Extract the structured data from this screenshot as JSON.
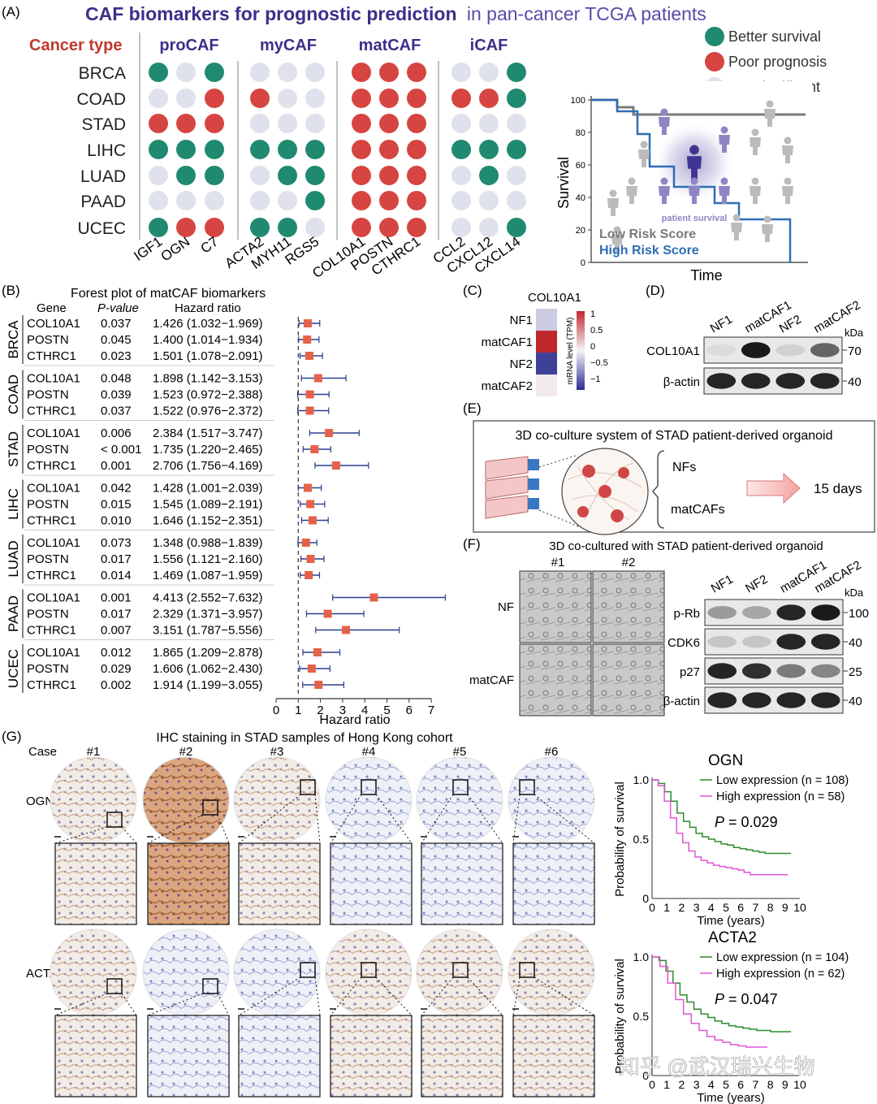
{
  "panelA": {
    "letter": "(A)",
    "title_bold": "CAF biomarkers for prognostic prediction",
    "title_rest": "in pan-cancer TCGA patients",
    "cancer_type_label": "Cancer type",
    "groups": [
      "proCAF",
      "myCAF",
      "matCAF",
      "iCAF"
    ],
    "cancers": [
      "BRCA",
      "COAD",
      "STAD",
      "LIHC",
      "LUAD",
      "PAAD",
      "UCEC"
    ],
    "genes": [
      "IGF1",
      "OGN",
      "C7",
      "ACTA2",
      "MYH11",
      "RGS5",
      "COL10A1",
      "POSTN",
      "CTHRC1",
      "CCL2",
      "CXCL12",
      "CXCL14"
    ],
    "grid": [
      [
        "G",
        "N",
        "G",
        "N",
        "N",
        "N",
        "R",
        "R",
        "R",
        "N",
        "N",
        "G"
      ],
      [
        "N",
        "N",
        "R",
        "R",
        "N",
        "N",
        "R",
        "R",
        "R",
        "R",
        "R",
        "G"
      ],
      [
        "R",
        "R",
        "R",
        "N",
        "N",
        "N",
        "R",
        "R",
        "R",
        "N",
        "N",
        "N"
      ],
      [
        "G",
        "G",
        "G",
        "G",
        "G",
        "G",
        "R",
        "R",
        "R",
        "G",
        "G",
        "G"
      ],
      [
        "N",
        "G",
        "G",
        "N",
        "G",
        "G",
        "R",
        "R",
        "R",
        "N",
        "G",
        "N"
      ],
      [
        "N",
        "N",
        "N",
        "N",
        "N",
        "G",
        "R",
        "R",
        "R",
        "N",
        "N",
        "N"
      ],
      [
        "G",
        "R",
        "R",
        "G",
        "G",
        "N",
        "R",
        "R",
        "R",
        "N",
        "N",
        "G"
      ]
    ],
    "legend": [
      {
        "label": "Better survival",
        "color": "#1f8a70"
      },
      {
        "label": "Poor prognosis",
        "color": "#d64541"
      },
      {
        "label": "Not significant",
        "color": "#dfe1ec"
      }
    ],
    "km_schematic": {
      "ylabel": "Survival",
      "xlabel": "Time",
      "yticks": [
        "0",
        "20",
        "40",
        "60",
        "80",
        "100"
      ],
      "center_label": "patient survival",
      "low_label": "Low Risk Score",
      "high_label": "High Risk Score",
      "low_color": "#7a7a7a",
      "high_color": "#2f6db5"
    }
  },
  "panelB": {
    "letter": "(B)",
    "title": "Forest plot of matCAF biomarkers",
    "col_gene": "Gene",
    "col_p": "P-value",
    "col_hr": "Hazard ratio",
    "xlabel": "Hazard ratio",
    "xticks": [
      "0",
      "1",
      "2",
      "3",
      "4",
      "5",
      "6",
      "7"
    ],
    "groups": [
      {
        "cancer": "BRCA",
        "rows": [
          {
            "gene": "COL10A1",
            "p": "0.037",
            "hr": "1.426 (1.032−1.969)"
          },
          {
            "gene": "POSTN",
            "p": "0.045",
            "hr": "1.400 (1.014−1.934)"
          },
          {
            "gene": "CTHRC1",
            "p": "0.023",
            "hr": "1.501 (1.078−2.091)"
          }
        ]
      },
      {
        "cancer": "COAD",
        "rows": [
          {
            "gene": "COL10A1",
            "p": "0.048",
            "hr": "1.898 (1.142−3.153)"
          },
          {
            "gene": "POSTN",
            "p": "0.039",
            "hr": "1.523 (0.972−2.388)"
          },
          {
            "gene": "CTHRC1",
            "p": "0.037",
            "hr": "1.522 (0.976−2.372)"
          }
        ]
      },
      {
        "cancer": "STAD",
        "rows": [
          {
            "gene": "COL10A1",
            "p": "0.006",
            "hr": "2.384 (1.517−3.747)"
          },
          {
            "gene": "POSTN",
            "p": "< 0.001",
            "hr": "1.735 (1.220−2.465)"
          },
          {
            "gene": "CTHRC1",
            "p": "0.001",
            "hr": "2.706 (1.756−4.169)"
          }
        ]
      },
      {
        "cancer": "LIHC",
        "rows": [
          {
            "gene": "COL10A1",
            "p": "0.042",
            "hr": "1.428 (1.001−2.039)"
          },
          {
            "gene": "POSTN",
            "p": "0.015",
            "hr": "1.545 (1.089−2.191)"
          },
          {
            "gene": "CTHRC1",
            "p": "0.010",
            "hr": "1.646 (1.152−2.351)"
          }
        ]
      },
      {
        "cancer": "LUAD",
        "rows": [
          {
            "gene": "COL10A1",
            "p": "0.073",
            "hr": "1.348 (0.988−1.839)"
          },
          {
            "gene": "POSTN",
            "p": "0.017",
            "hr": "1.556 (1.121−2.160)"
          },
          {
            "gene": "CTHRC1",
            "p": "0.014",
            "hr": "1.469 (1.087−1.959)"
          }
        ]
      },
      {
        "cancer": "PAAD",
        "rows": [
          {
            "gene": "COL10A1",
            "p": "0.001",
            "hr": "4.413 (2.552−7.632)"
          },
          {
            "gene": "POSTN",
            "p": "0.017",
            "hr": "2.329 (1.371−3.957)"
          },
          {
            "gene": "CTHRC1",
            "p": "0.007",
            "hr": "3.151 (1.787−5.556)"
          }
        ]
      },
      {
        "cancer": "UCEC",
        "rows": [
          {
            "gene": "COL10A1",
            "p": "0.012",
            "hr": "1.865 (1.209−2.878)"
          },
          {
            "gene": "POSTN",
            "p": "0.029",
            "hr": "1.606 (1.062−2.430)"
          },
          {
            "gene": "CTHRC1",
            "p": "0.002",
            "hr": "1.914  (1.199−3.055)"
          }
        ]
      }
    ]
  },
  "chart_data": {
    "type": "scatter",
    "title": "Forest plot of matCAF biomarkers",
    "xlabel": "Hazard ratio",
    "ylabel": "",
    "xlim": [
      0,
      7
    ],
    "reference_line": 1,
    "series": [
      {
        "name": "BRCA",
        "genes": [
          "COL10A1",
          "POSTN",
          "CTHRC1"
        ],
        "hr": [
          1.426,
          1.4,
          1.501
        ],
        "lo": [
          1.032,
          1.014,
          1.078
        ],
        "hi": [
          1.969,
          1.934,
          2.091
        ]
      },
      {
        "name": "COAD",
        "genes": [
          "COL10A1",
          "POSTN",
          "CTHRC1"
        ],
        "hr": [
          1.898,
          1.523,
          1.522
        ],
        "lo": [
          1.142,
          0.972,
          0.976
        ],
        "hi": [
          3.153,
          2.388,
          2.372
        ]
      },
      {
        "name": "STAD",
        "genes": [
          "COL10A1",
          "POSTN",
          "CTHRC1"
        ],
        "hr": [
          2.384,
          1.735,
          2.706
        ],
        "lo": [
          1.517,
          1.22,
          1.756
        ],
        "hi": [
          3.747,
          2.465,
          4.169
        ]
      },
      {
        "name": "LIHC",
        "genes": [
          "COL10A1",
          "POSTN",
          "CTHRC1"
        ],
        "hr": [
          1.428,
          1.545,
          1.646
        ],
        "lo": [
          1.001,
          1.089,
          1.152
        ],
        "hi": [
          2.039,
          2.191,
          2.351
        ]
      },
      {
        "name": "LUAD",
        "genes": [
          "COL10A1",
          "POSTN",
          "CTHRC1"
        ],
        "hr": [
          1.348,
          1.556,
          1.469
        ],
        "lo": [
          0.988,
          1.121,
          1.087
        ],
        "hi": [
          1.839,
          2.16,
          1.959
        ]
      },
      {
        "name": "PAAD",
        "genes": [
          "COL10A1",
          "POSTN",
          "CTHRC1"
        ],
        "hr": [
          4.413,
          2.329,
          3.151
        ],
        "lo": [
          2.552,
          1.371,
          1.787
        ],
        "hi": [
          7.632,
          3.957,
          5.556
        ]
      },
      {
        "name": "UCEC",
        "genes": [
          "COL10A1",
          "POSTN",
          "CTHRC1"
        ],
        "hr": [
          1.865,
          1.606,
          1.914
        ],
        "lo": [
          1.209,
          1.062,
          1.199
        ],
        "hi": [
          2.878,
          2.43,
          3.055
        ]
      }
    ]
  },
  "panelC": {
    "letter": "(C)",
    "title": "COL10A1",
    "rows": [
      "NF1",
      "matCAF1",
      "NF2",
      "matCAF2"
    ],
    "values": [
      -0.2,
      1.0,
      -0.9,
      0.05
    ],
    "colorbar_label": "mRNA level (TPM)",
    "colorbar_ticks": [
      "1",
      "0.5",
      "0",
      "−0.5",
      "−1"
    ]
  },
  "panelD": {
    "letter": "(D)",
    "lanes": [
      "NF1",
      "matCAF1",
      "NF2",
      "matCAF2"
    ],
    "kda": "kDa",
    "bands": [
      {
        "label": "COL10A1",
        "mw": "70",
        "intensity": [
          0.05,
          0.95,
          0.1,
          0.6
        ]
      },
      {
        "label": "β-actin",
        "mw": "40",
        "intensity": [
          0.9,
          0.9,
          0.9,
          0.9
        ]
      }
    ]
  },
  "panelE": {
    "letter": "(E)",
    "title": "3D co-culture system of STAD patient-derived organoid",
    "opt1": "NFs",
    "opt2": "matCAFs",
    "duration": "15 days"
  },
  "panelF": {
    "letter": "(F)",
    "title": "3D co-cultured with STAD patient-derived organoid",
    "cols": [
      "#1",
      "#2"
    ],
    "rows": [
      "NF",
      "matCAF"
    ],
    "lanes": [
      "NF1",
      "NF2",
      "matCAF1",
      "matCAF2"
    ],
    "kda": "kDa",
    "bands": [
      {
        "label": "p-Rb",
        "mw": "100",
        "intensity": [
          0.35,
          0.3,
          0.9,
          0.95
        ]
      },
      {
        "label": "CDK6",
        "mw": "40",
        "intensity": [
          0.15,
          0.15,
          0.9,
          0.9
        ]
      },
      {
        "label": "p27",
        "mw": "25",
        "intensity": [
          0.9,
          0.85,
          0.5,
          0.45
        ]
      },
      {
        "label": "β-actin",
        "mw": "40",
        "intensity": [
          0.9,
          0.9,
          0.9,
          0.9
        ]
      }
    ]
  },
  "panelG": {
    "letter": "(G)",
    "title": "IHC staining in STAD samples of Hong Kong cohort",
    "case_label": "Case",
    "cases": [
      "#1",
      "#2",
      "#3",
      "#4",
      "#5",
      "#6"
    ],
    "markers": [
      "OGN",
      "ACTA2"
    ],
    "km": [
      {
        "gene": "OGN",
        "low": "Low expression (n = 108)",
        "high": "High expression (n = 58)",
        "p_label": "P",
        "p_value": " = 0.029"
      },
      {
        "gene": "ACTA2",
        "low": "Low expression (n = 104)",
        "high": "High expression (n = 62)",
        "p_label": "P",
        "p_value": " = 0.047"
      }
    ],
    "km_ylabel": "Probability of survival",
    "km_xlabel": "Time (years)",
    "km_yticks": [
      "0",
      "0.5",
      "1.0"
    ],
    "km_xticks": [
      "0",
      "1",
      "2",
      "3",
      "4",
      "5",
      "6",
      "7",
      "8",
      "9",
      "10"
    ],
    "low_color": "#2e8b2e",
    "high_color": "#e055d6"
  },
  "watermark": "知乎 @武汉瑞兴生物"
}
